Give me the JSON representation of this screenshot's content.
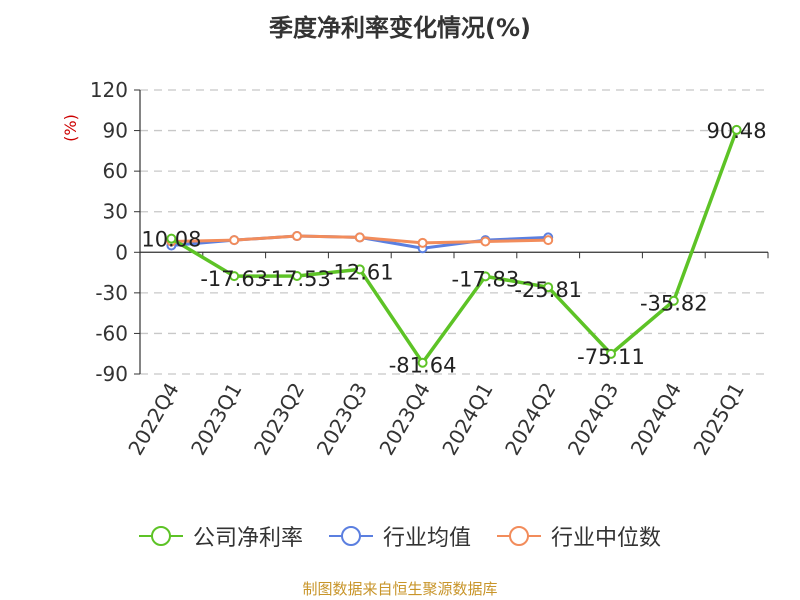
{
  "chart_data": {
    "type": "line",
    "title": "季度净利率变化情况(%)",
    "ylabel": "(%)",
    "categories": [
      "2022Q4",
      "2023Q1",
      "2023Q2",
      "2023Q3",
      "2023Q4",
      "2024Q1",
      "2024Q2",
      "2024Q3",
      "2024Q4",
      "2025Q1"
    ],
    "ylim": [
      -90,
      120
    ],
    "yticks": [
      120,
      90,
      60,
      30,
      0,
      -30,
      -60,
      -90
    ],
    "grid": true,
    "legend_position": "bottom",
    "series": [
      {
        "name": "公司净利率",
        "color": "#5dc326",
        "values": [
          10.08,
          -17.63,
          -17.53,
          -12.61,
          -81.64,
          -17.83,
          -25.81,
          -75.11,
          -35.82,
          90.48
        ],
        "labels": [
          "10.08",
          "-17.63",
          "-17.53",
          "-12.61",
          "-81.64",
          "-17.83",
          "-25.81",
          "-75.11",
          "-35.82",
          "90.48"
        ]
      },
      {
        "name": "行业均值",
        "color": "#5b7fe0",
        "values": [
          5,
          9,
          12,
          11,
          3,
          9,
          11,
          null,
          null,
          null
        ]
      },
      {
        "name": "行业中位数",
        "color": "#f28c5b",
        "values": [
          8,
          9,
          12,
          11,
          7,
          8,
          9,
          null,
          null,
          null
        ]
      }
    ]
  },
  "source": "制图数据来自恒生聚源数据库"
}
